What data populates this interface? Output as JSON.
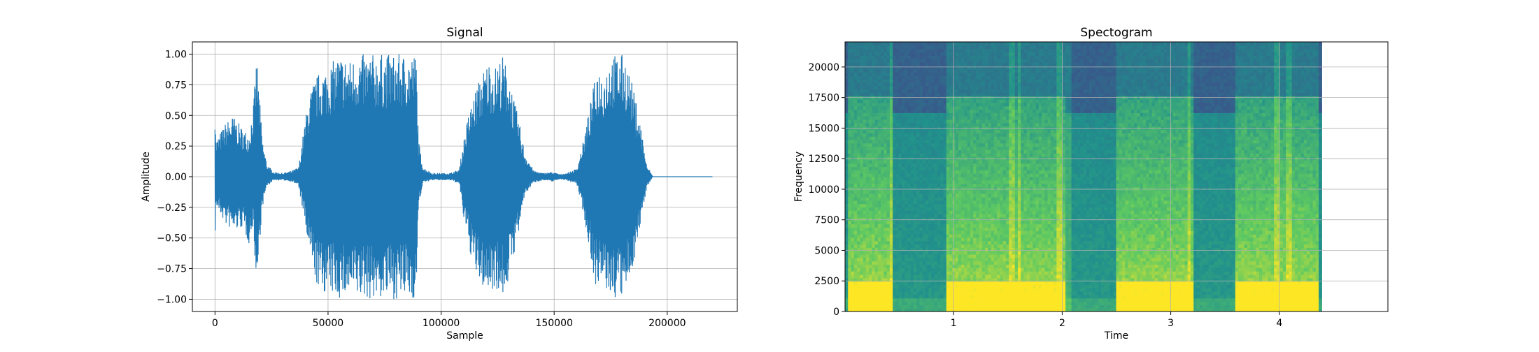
{
  "chart_data": [
    {
      "type": "line",
      "title": "Signal",
      "xlabel": "Sample",
      "ylabel": "Amplitude",
      "xlim": [
        -10000,
        231000
      ],
      "ylim": [
        -1.1,
        1.1
      ],
      "grid": true,
      "color": "#1f77b4",
      "xticks": [
        0,
        50000,
        100000,
        150000,
        200000
      ],
      "xtick_labels": [
        "0",
        "50000",
        "100000",
        "150000",
        "200000"
      ],
      "yticks": [
        -1.0,
        -0.75,
        -0.5,
        -0.25,
        0.0,
        0.25,
        0.5,
        0.75,
        1.0
      ],
      "ytick_labels": [
        "−1.00",
        "−0.75",
        "−0.50",
        "−0.25",
        "0.00",
        "0.25",
        "0.50",
        "0.75",
        "1.00"
      ],
      "envelope": {
        "x": [
          0,
          500,
          2000,
          5000,
          8000,
          12000,
          15000,
          17000,
          18500,
          19500,
          21000,
          23000,
          26000,
          30000,
          34000,
          37000,
          39000,
          41000,
          43000,
          46000,
          50000,
          55000,
          60000,
          63000,
          66000,
          70000,
          75000,
          80000,
          84000,
          87000,
          89000,
          90000,
          92000,
          96000,
          100000,
          104000,
          108000,
          110000,
          112000,
          115000,
          118000,
          121000,
          124000,
          127000,
          130000,
          132000,
          134000,
          137000,
          141000,
          145000,
          149000,
          153000,
          157000,
          160000,
          163000,
          166000,
          169000,
          172000,
          175000,
          178000,
          181000,
          184000,
          187000,
          189000,
          191000,
          192500,
          193500,
          220000
        ],
        "upper": [
          0.7,
          0.3,
          0.35,
          0.45,
          0.5,
          0.4,
          0.35,
          0.6,
          1.0,
          0.7,
          0.3,
          0.1,
          0.04,
          0.03,
          0.05,
          0.08,
          0.35,
          0.6,
          0.75,
          0.85,
          0.9,
          1.0,
          0.95,
          1.0,
          1.0,
          1.0,
          1.0,
          1.0,
          1.0,
          1.0,
          1.0,
          0.3,
          0.08,
          0.03,
          0.03,
          0.03,
          0.06,
          0.3,
          0.5,
          0.7,
          0.85,
          0.95,
          0.9,
          1.0,
          0.85,
          0.65,
          0.5,
          0.2,
          0.05,
          0.03,
          0.04,
          0.02,
          0.04,
          0.07,
          0.3,
          0.6,
          0.9,
          0.85,
          1.0,
          1.0,
          1.0,
          0.8,
          0.55,
          0.35,
          0.08,
          0.05,
          0.0,
          0.0
        ],
        "lower": [
          -0.52,
          -0.25,
          -0.3,
          -0.4,
          -0.45,
          -0.42,
          -0.55,
          -0.4,
          -1.0,
          -0.6,
          -0.25,
          -0.08,
          -0.03,
          -0.03,
          -0.04,
          -0.08,
          -0.3,
          -0.55,
          -0.75,
          -0.95,
          -0.95,
          -1.0,
          -0.98,
          -1.0,
          -1.0,
          -1.0,
          -1.0,
          -1.0,
          -1.0,
          -1.0,
          -1.0,
          -0.25,
          -0.05,
          -0.03,
          -0.03,
          -0.03,
          -0.06,
          -0.35,
          -0.55,
          -0.8,
          -0.9,
          -0.95,
          -0.9,
          -1.0,
          -0.85,
          -0.65,
          -0.5,
          -0.15,
          -0.05,
          -0.03,
          -0.04,
          -0.02,
          -0.04,
          -0.06,
          -0.3,
          -0.65,
          -0.95,
          -0.9,
          -1.0,
          -1.0,
          -1.0,
          -0.8,
          -0.55,
          -0.3,
          -0.08,
          -0.04,
          0.0,
          0.0
        ]
      }
    },
    {
      "type": "heatmap",
      "title": "Spectogram",
      "xlabel": "Time",
      "ylabel": "Frequency",
      "xlim": [
        0,
        5.0
      ],
      "ylim": [
        0,
        22050
      ],
      "data_extent_x": [
        0,
        4.39
      ],
      "grid": true,
      "colormap": "viridis",
      "xticks": [
        1,
        2,
        3,
        4
      ],
      "xtick_labels": [
        "1",
        "2",
        "3",
        "4"
      ],
      "yticks": [
        0,
        2500,
        5000,
        7500,
        10000,
        12500,
        15000,
        17500,
        20000
      ],
      "ytick_labels": [
        "0",
        "2500",
        "5000",
        "7500",
        "10000",
        "12500",
        "15000",
        "17500",
        "20000"
      ],
      "speech_segments": [
        [
          0.03,
          0.45
        ],
        [
          0.93,
          2.03
        ],
        [
          2.5,
          3.2
        ],
        [
          3.6,
          4.35
        ]
      ],
      "bright_lines_x": [
        0.42,
        1.53,
        1.6,
        1.98,
        2.05,
        3.17,
        3.98,
        4.08
      ],
      "noise_floor_frequency": 16200,
      "colors": {
        "noise_high": "#3b5d8a",
        "noise_mid": "#2a8c8a",
        "speech_low": "#e8e41c",
        "speech_mid": "#9fd447",
        "background": "#1f9a8a"
      }
    }
  ]
}
